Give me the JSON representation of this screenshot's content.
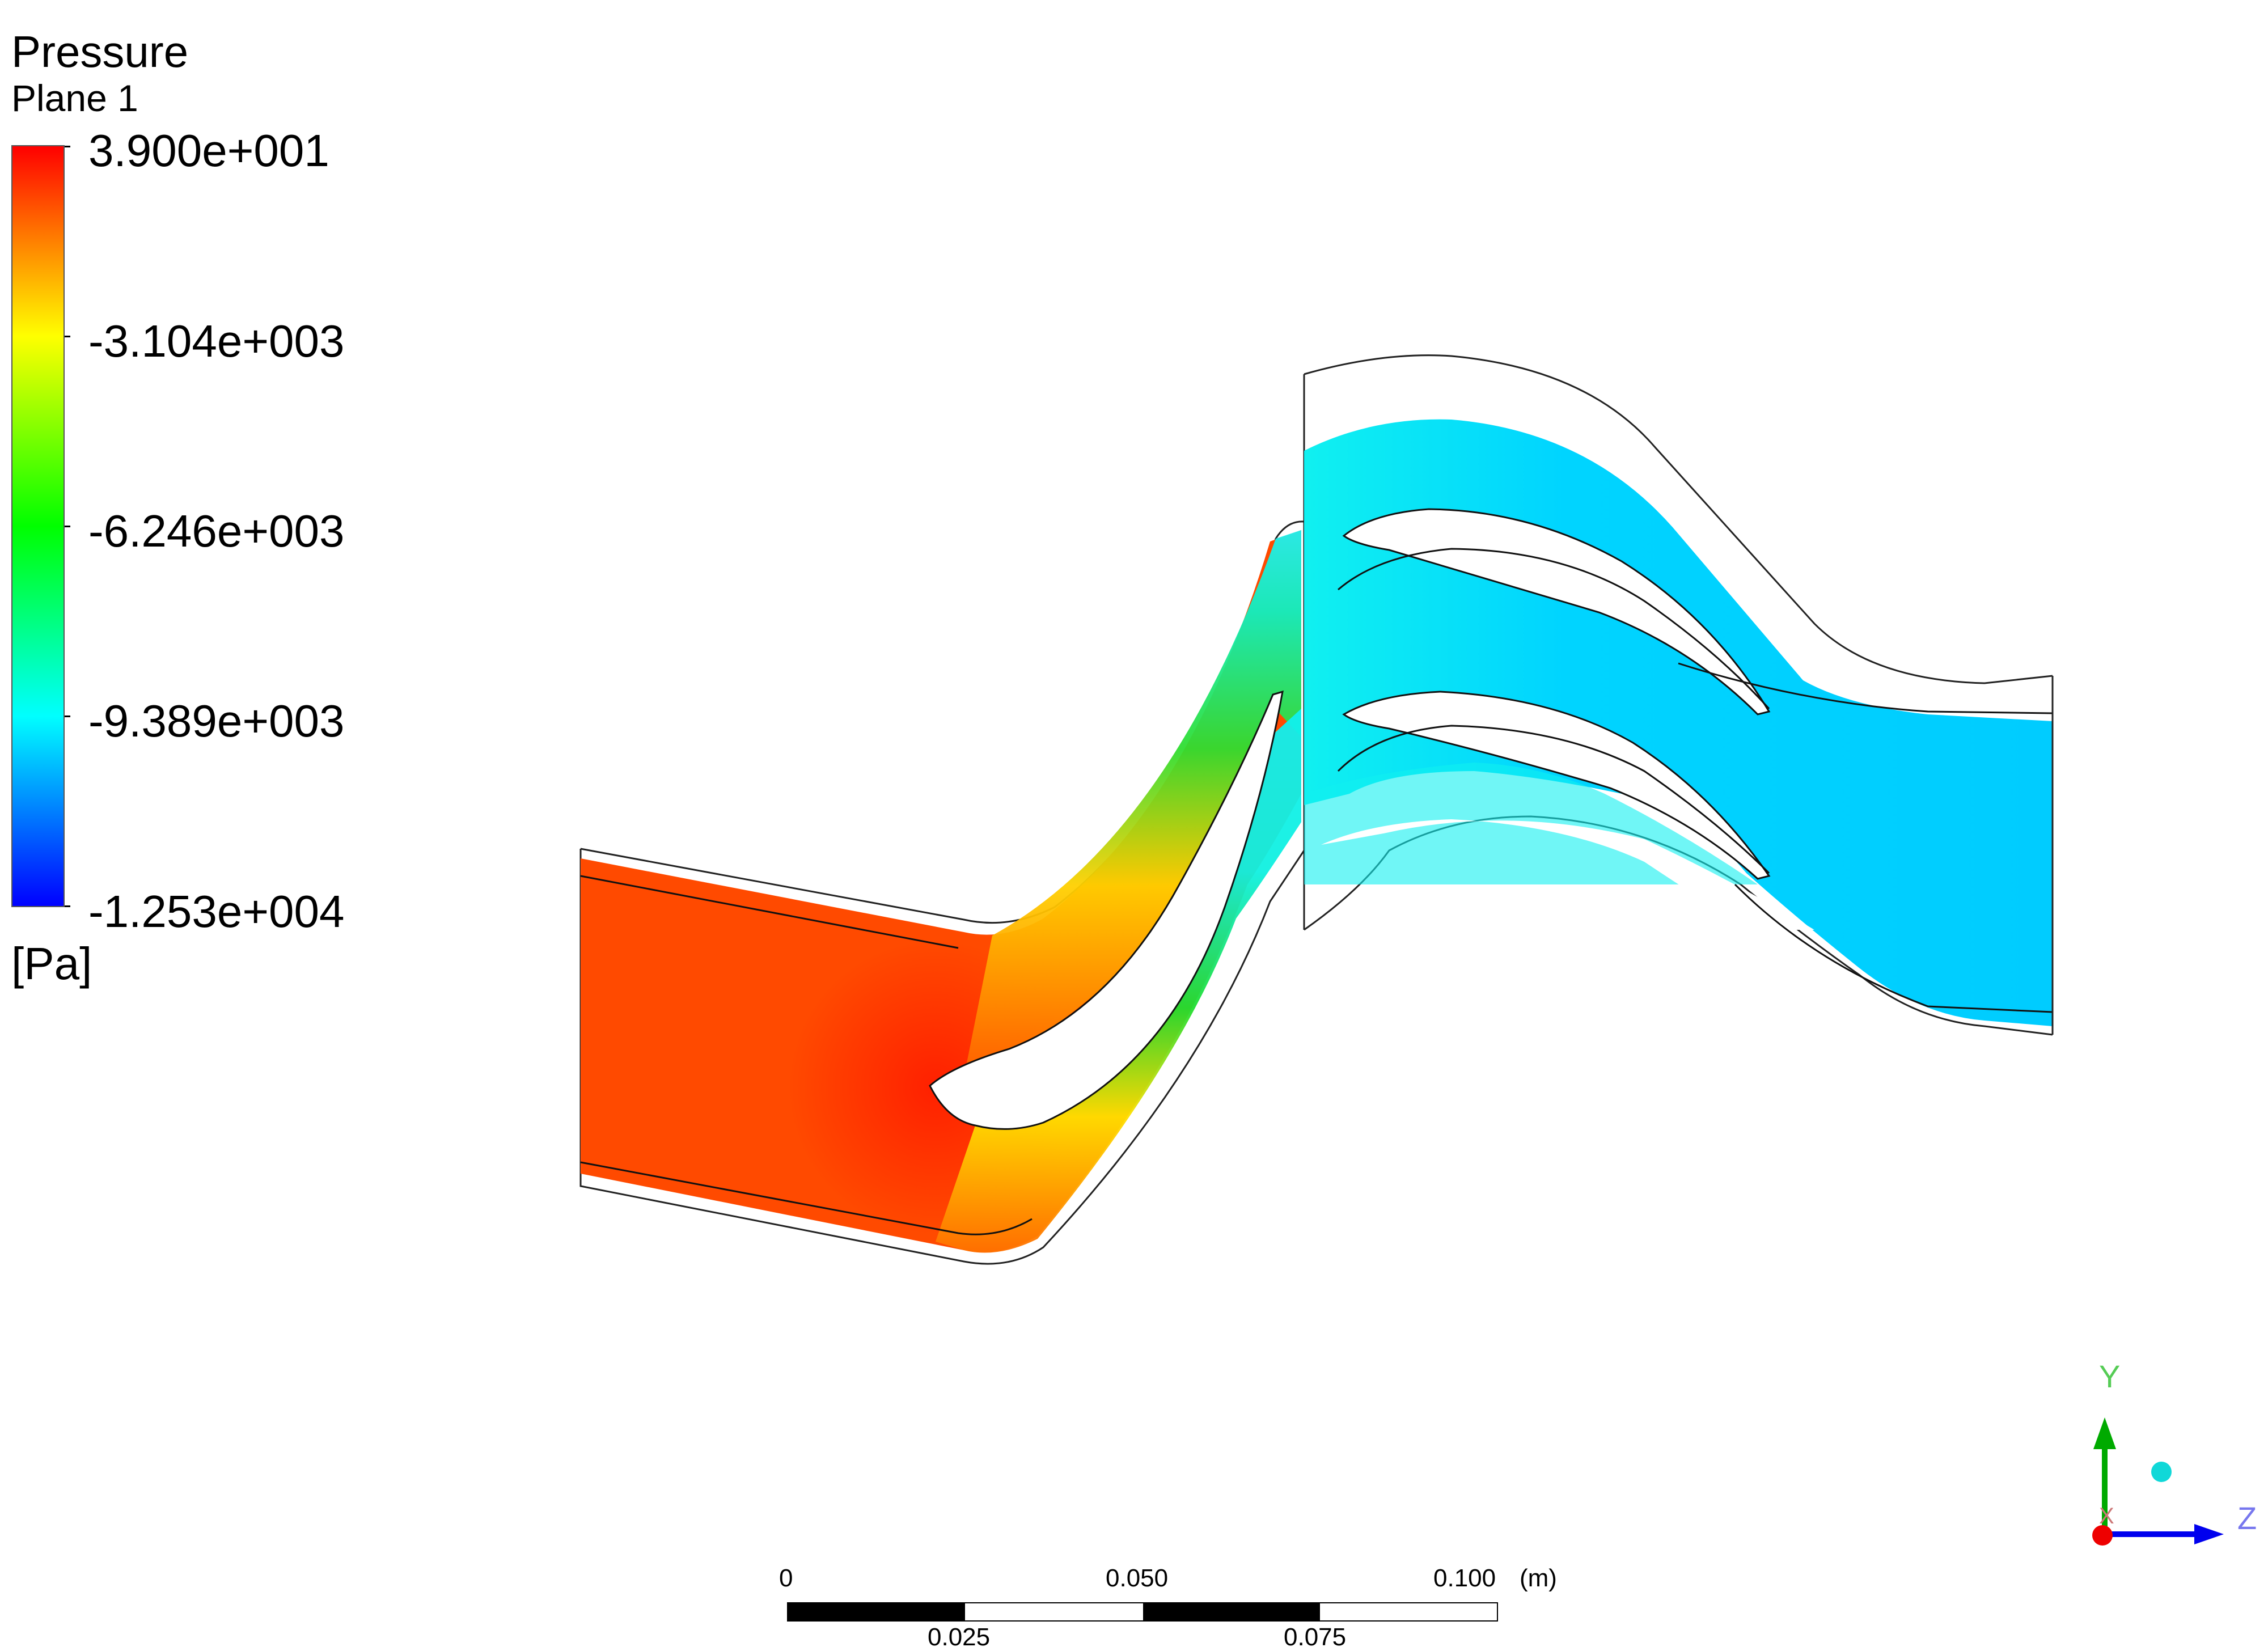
{
  "legend": {
    "title": "Pressure",
    "subtitle": "Plane 1",
    "unit": "[Pa]",
    "ticks": [
      "3.900e+001",
      "-3.104e+003",
      "-6.246e+003",
      "-9.389e+003",
      "-1.253e+004"
    ],
    "colors": [
      "#ff0000",
      "#ff8000",
      "#ffff00",
      "#80ff00",
      "#00ff00",
      "#00ff80",
      "#00ffff",
      "#0080ff",
      "#0000ff"
    ]
  },
  "field_colors": {
    "inlet": "#ff4a00",
    "stator_mid": "#ffd000",
    "stator_throat": "#22dd22",
    "rotor": "#10f0f0",
    "outlet": "#00ccff"
  },
  "scale": {
    "top_labels": [
      "0",
      "0.050",
      "0.100"
    ],
    "unit": "(m)",
    "bottom_labels": [
      "0.025",
      "0.075"
    ]
  },
  "triad": {
    "y": "Y",
    "z": "Z",
    "x": "X"
  }
}
